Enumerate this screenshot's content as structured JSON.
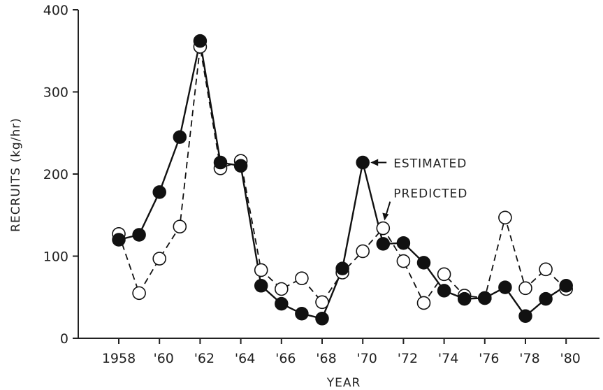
{
  "chart_data": {
    "type": "line",
    "title": "",
    "xlabel": "YEAR",
    "ylabel": "RECRUITS (kg/hr)",
    "ylim": [
      0,
      400
    ],
    "xlim": [
      1958,
      1980
    ],
    "x_tick_values": [
      1958,
      1960,
      1962,
      1964,
      1966,
      1968,
      1970,
      1972,
      1974,
      1976,
      1978,
      1980
    ],
    "x_tick_labels": [
      "1958",
      "'60",
      "'62",
      "'64",
      "'66",
      "'68",
      "'70",
      "'72",
      "'74",
      "'76",
      "'78",
      "'80"
    ],
    "y_ticks": [
      0,
      100,
      200,
      300,
      400
    ],
    "y_tick_labels": [
      "0",
      "100",
      "200",
      "300",
      "400"
    ],
    "grid": false,
    "x": [
      1958,
      1959,
      1960,
      1961,
      1962,
      1963,
      1964,
      1965,
      1966,
      1967,
      1968,
      1969,
      1970,
      1971,
      1972,
      1973,
      1974,
      1975,
      1976,
      1977,
      1978,
      1979,
      1980
    ],
    "series": [
      {
        "name": "ESTIMATED",
        "marker": "filled-circle",
        "line_style": "solid",
        "values": [
          120,
          126,
          178,
          245,
          362,
          214,
          210,
          64,
          42,
          30,
          24,
          85,
          214,
          115,
          116,
          92,
          58,
          48,
          49,
          62,
          27,
          48,
          64
        ]
      },
      {
        "name": "PREDICTED",
        "marker": "open-circle",
        "line_style": "dashed",
        "values": [
          127,
          55,
          97,
          136,
          355,
          207,
          216,
          83,
          60,
          73,
          44,
          80,
          106,
          134,
          94,
          43,
          78,
          52,
          49,
          147,
          61,
          84,
          60
        ]
      }
    ],
    "annotations": [
      {
        "text": "ESTIMATED",
        "x": 1970,
        "y": 214
      },
      {
        "text": "PREDICTED",
        "x": 1971,
        "y": 134
      }
    ]
  }
}
